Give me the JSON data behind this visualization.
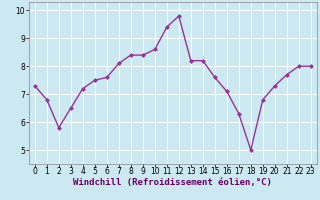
{
  "x": [
    0,
    1,
    2,
    3,
    4,
    5,
    6,
    7,
    8,
    9,
    10,
    11,
    12,
    13,
    14,
    15,
    16,
    17,
    18,
    19,
    20,
    21,
    22,
    23
  ],
  "y": [
    7.3,
    6.8,
    5.8,
    6.5,
    7.2,
    7.5,
    7.6,
    8.1,
    8.4,
    8.4,
    8.6,
    9.4,
    9.8,
    8.2,
    8.2,
    7.6,
    7.1,
    6.3,
    5.0,
    6.8,
    7.3,
    7.7,
    8.0,
    8.0
  ],
  "line_color": "#993399",
  "marker": "D",
  "marker_size": 2.0,
  "linewidth": 1.0,
  "xlabel": "Windchill (Refroidissement éolien,°C)",
  "xlabel_fontsize": 6.5,
  "ylim": [
    4.5,
    10.3
  ],
  "xlim": [
    -0.5,
    23.5
  ],
  "yticks": [
    5,
    6,
    7,
    8,
    9,
    10
  ],
  "xticks": [
    0,
    1,
    2,
    3,
    4,
    5,
    6,
    7,
    8,
    9,
    10,
    11,
    12,
    13,
    14,
    15,
    16,
    17,
    18,
    19,
    20,
    21,
    22,
    23
  ],
  "tick_fontsize": 5.5,
  "bg_color": "#cce8f0",
  "grid_color": "#ffffff",
  "spine_color": "#888888"
}
